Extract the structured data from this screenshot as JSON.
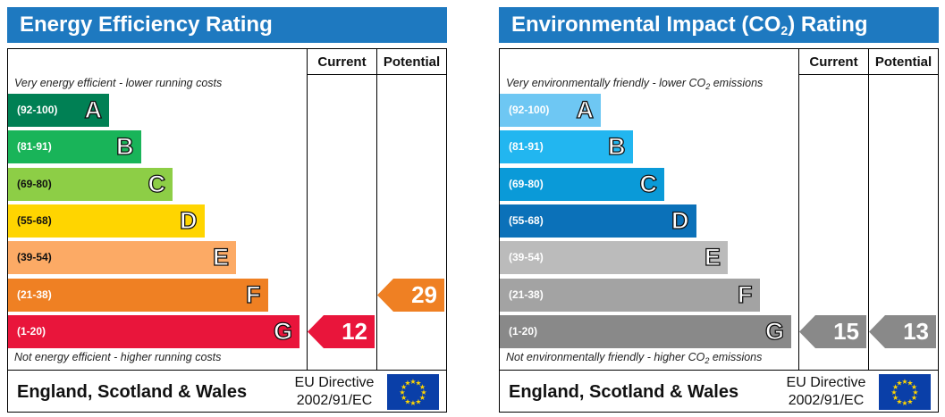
{
  "charts": [
    {
      "title": "Energy Efficiency Rating",
      "col_current": "Current",
      "col_potential": "Potential",
      "top_note": "Very energy efficient - lower running costs",
      "bottom_note": "Not energy efficient - higher running costs",
      "bands": [
        {
          "range": "(92-100)",
          "letter": "A",
          "color": "#008054"
        },
        {
          "range": "(81-91)",
          "letter": "B",
          "color": "#19b459"
        },
        {
          "range": "(69-80)",
          "letter": "C",
          "color": "#8dce46"
        },
        {
          "range": "(55-68)",
          "letter": "D",
          "color": "#ffd500"
        },
        {
          "range": "(39-54)",
          "letter": "E",
          "color": "#fcaa65"
        },
        {
          "range": "(21-38)",
          "letter": "F",
          "color": "#ef8023"
        },
        {
          "range": "(1-20)",
          "letter": "G",
          "color": "#e9153b"
        }
      ],
      "current": {
        "value": "12",
        "band": "G",
        "color": "#e9153b"
      },
      "potential": {
        "value": "29",
        "band": "F",
        "color": "#ef8023"
      },
      "footer_region": "England, Scotland & Wales",
      "footer_directive_line1": "EU Directive",
      "footer_directive_line2": "2002/91/EC"
    },
    {
      "title": "Environmental Impact (CO",
      "title_sub": "2",
      "title_end": ") Rating",
      "col_current": "Current",
      "col_potential": "Potential",
      "top_note": "Very environmentally friendly - lower CO",
      "top_note_sub": "2",
      "top_note_end": " emissions",
      "bottom_note": "Not environmentally friendly - higher CO",
      "bottom_note_sub": "2",
      "bottom_note_end": " emissions",
      "bands": [
        {
          "range": "(92-100)",
          "letter": "A",
          "color": "#6ec7f3"
        },
        {
          "range": "(81-91)",
          "letter": "B",
          "color": "#22b6f0"
        },
        {
          "range": "(69-80)",
          "letter": "C",
          "color": "#0a9ad8"
        },
        {
          "range": "(55-68)",
          "letter": "D",
          "color": "#0b71b9"
        },
        {
          "range": "(39-54)",
          "letter": "E",
          "color": "#bbbbbb"
        },
        {
          "range": "(21-38)",
          "letter": "F",
          "color": "#a3a3a3"
        },
        {
          "range": "(1-20)",
          "letter": "G",
          "color": "#898989"
        }
      ],
      "current": {
        "value": "15",
        "band": "G",
        "color": "#898989"
      },
      "potential": {
        "value": "13",
        "band": "G",
        "color": "#898989"
      },
      "footer_region": "England, Scotland & Wales",
      "footer_directive_line1": "EU Directive",
      "footer_directive_line2": "2002/91/EC"
    }
  ]
}
